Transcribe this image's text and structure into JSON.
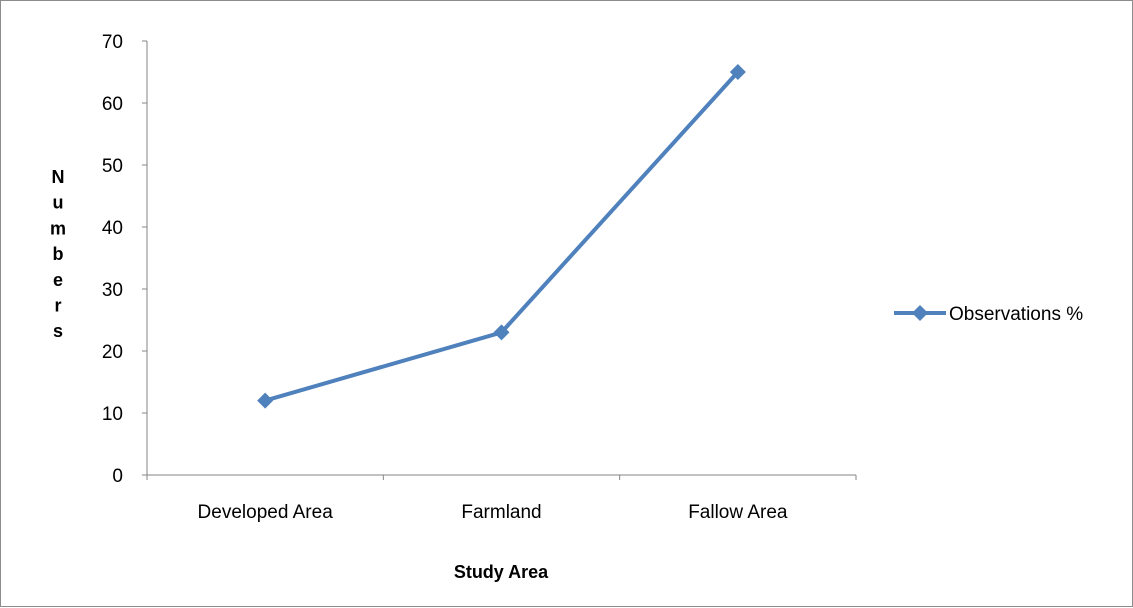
{
  "chart_data": {
    "type": "line",
    "categories": [
      "Developed Area",
      "Farmland",
      "Fallow Area"
    ],
    "series": [
      {
        "name": "Observations %",
        "values": [
          12,
          23,
          65
        ]
      }
    ],
    "xlabel": "Study Area",
    "ylabel": "Numbers",
    "ylim": [
      0,
      70
    ],
    "yticks": [
      0,
      10,
      20,
      30,
      40,
      50,
      60,
      70
    ],
    "grid": false,
    "legend": "right",
    "colors": {
      "series": "#4f81bd",
      "axis": "#868686"
    }
  }
}
